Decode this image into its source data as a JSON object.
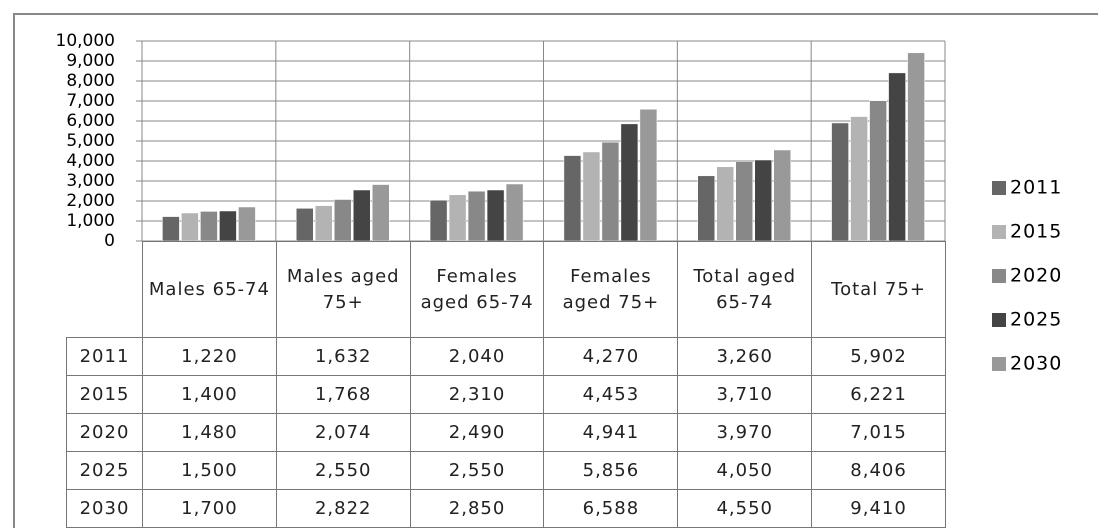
{
  "chart_data": {
    "type": "bar",
    "categories": [
      "Males 65-74",
      "Males aged 75+",
      "Females aged 65-74",
      "Females aged 75+",
      "Total aged 65-74",
      "Total 75+"
    ],
    "series": [
      {
        "name": "2011",
        "color": "#666666",
        "values": [
          1220,
          1632,
          2040,
          4270,
          3260,
          5902
        ],
        "value_labels": [
          "1,220",
          "1,632",
          "2,040",
          "4,270",
          "3,260",
          "5,902"
        ]
      },
      {
        "name": "2015",
        "color": "#b3b3b3",
        "values": [
          1400,
          1768,
          2310,
          4453,
          3710,
          6221
        ],
        "value_labels": [
          "1,400",
          "1,768",
          "2,310",
          "4,453",
          "3,710",
          "6,221"
        ]
      },
      {
        "name": "2020",
        "color": "#888888",
        "values": [
          1480,
          2074,
          2490,
          4941,
          3970,
          7015
        ],
        "value_labels": [
          "1,480",
          "2,074",
          "2,490",
          "4,941",
          "3,970",
          "7,015"
        ]
      },
      {
        "name": "2025",
        "color": "#444444",
        "values": [
          1500,
          2550,
          2550,
          5856,
          4050,
          8406
        ],
        "value_labels": [
          "1,500",
          "2,550",
          "2,550",
          "5,856",
          "4,050",
          "8,406"
        ]
      },
      {
        "name": "2030",
        "color": "#999999",
        "values": [
          1700,
          2822,
          2850,
          6588,
          4550,
          9410
        ],
        "value_labels": [
          "1,700",
          "2,822",
          "2,850",
          "6,588",
          "4,550",
          "9,410"
        ]
      }
    ],
    "ylim": [
      0,
      10000
    ],
    "yticks": [
      0,
      {
        "value": 1000,
        "label": "1,000"
      },
      {
        "value": 2000,
        "label": "2,000"
      },
      {
        "value": 3000,
        "label": "3,000"
      },
      {
        "value": 4000,
        "label": "4,000"
      },
      {
        "value": 5000,
        "label": "5,000"
      },
      {
        "value": 6000,
        "label": "6,000"
      },
      {
        "value": 7000,
        "label": "7,000"
      },
      {
        "value": 8000,
        "label": "8,000"
      },
      {
        "value": 9000,
        "label": "9,000"
      },
      {
        "value": 10000,
        "label": "10,000"
      }
    ],
    "grid": true,
    "legend": "right"
  }
}
